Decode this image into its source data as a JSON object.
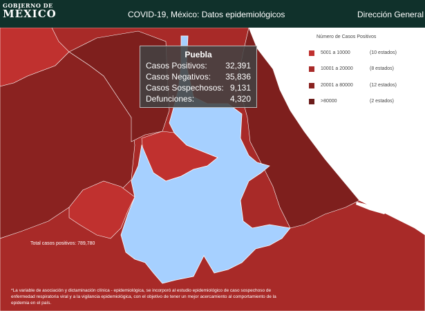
{
  "header": {
    "logo_top": "GOBIERNO DE",
    "logo_main": "MÉXICO",
    "title": "COVID-19, México: Datos epidemiológicos",
    "right_label": "Dirección General de Epidemiología"
  },
  "colors": {
    "header_bg": "#10312b",
    "range_5001_10000": "#c0312f",
    "range_10001_20000": "#a82a28",
    "range_20001_80000": "#8a2220",
    "range_over_80000": "#6b1c1a",
    "selected_state": "#a6d0ff"
  },
  "legend": {
    "title": "Número de Casos Positivos",
    "items": [
      {
        "range": "5001 a  10000",
        "count": "(10 estados)",
        "color": "#c0312f"
      },
      {
        "range": "10001 a  20000",
        "count": "(8 estados)",
        "color": "#a82a28"
      },
      {
        "range": "20001 a  80000",
        "count": "(12 estados)",
        "color": "#8a2220"
      },
      {
        "range": ">80000",
        "count": "(2 estados)",
        "color": "#6b1c1a"
      }
    ]
  },
  "tooltip": {
    "state": "Puebla",
    "rows": [
      {
        "label": "Casos Positivos:",
        "value": "32,391"
      },
      {
        "label": "Casos Negativos:",
        "value": "35,836"
      },
      {
        "label": "Casos Sospechosos:",
        "value": "9,131"
      },
      {
        "label": "Defunciones:",
        "value": "4,320"
      }
    ]
  },
  "total_label": "Total casos positivos: 789,780",
  "footnote": "*La variable de asociación y dictaminación clínica - epidemiológica, se incorporó al estudio epidemiológico de caso sospechoso de enfermedad respiratoria viral y a la vigilancia epidemiológica, con el objetivo de tener un mejor acercamiento al comportamiento de la epidemia en el país."
}
